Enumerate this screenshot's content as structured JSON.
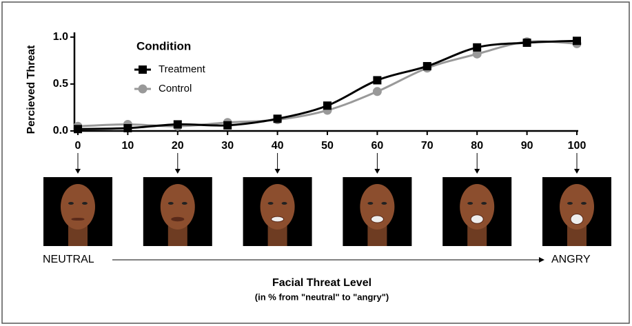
{
  "chart_data": {
    "type": "line",
    "y_label": "Percieved Threat",
    "legend_title": "Condition",
    "x": [
      0,
      10,
      20,
      30,
      40,
      50,
      60,
      70,
      80,
      90,
      100
    ],
    "series": [
      {
        "name": "Treatment",
        "color": "#000000",
        "marker": "square",
        "values": [
          0.02,
          0.03,
          0.07,
          0.06,
          0.13,
          0.27,
          0.54,
          0.69,
          0.89,
          0.94,
          0.96
        ]
      },
      {
        "name": "Control",
        "color": "#999999",
        "marker": "circle",
        "values": [
          0.05,
          0.07,
          0.05,
          0.09,
          0.12,
          0.22,
          0.42,
          0.67,
          0.82,
          0.95,
          0.93
        ]
      }
    ],
    "xlim": [
      0,
      100
    ],
    "xticks": [
      0,
      10,
      20,
      30,
      40,
      50,
      60,
      70,
      80,
      90,
      100
    ],
    "ylim": [
      0,
      1.05
    ],
    "yticks": [
      {
        "value": 0,
        "label": "0.0"
      },
      {
        "value": 0.5,
        "label": "0.5"
      },
      {
        "value": 1,
        "label": "1.0"
      }
    ],
    "start_label": "NEUTRAL",
    "end_label": "ANGRY",
    "x_label": "Facial Threat Level",
    "x_sublabel": "(in % from \"neutral\" to \"angry\")"
  }
}
